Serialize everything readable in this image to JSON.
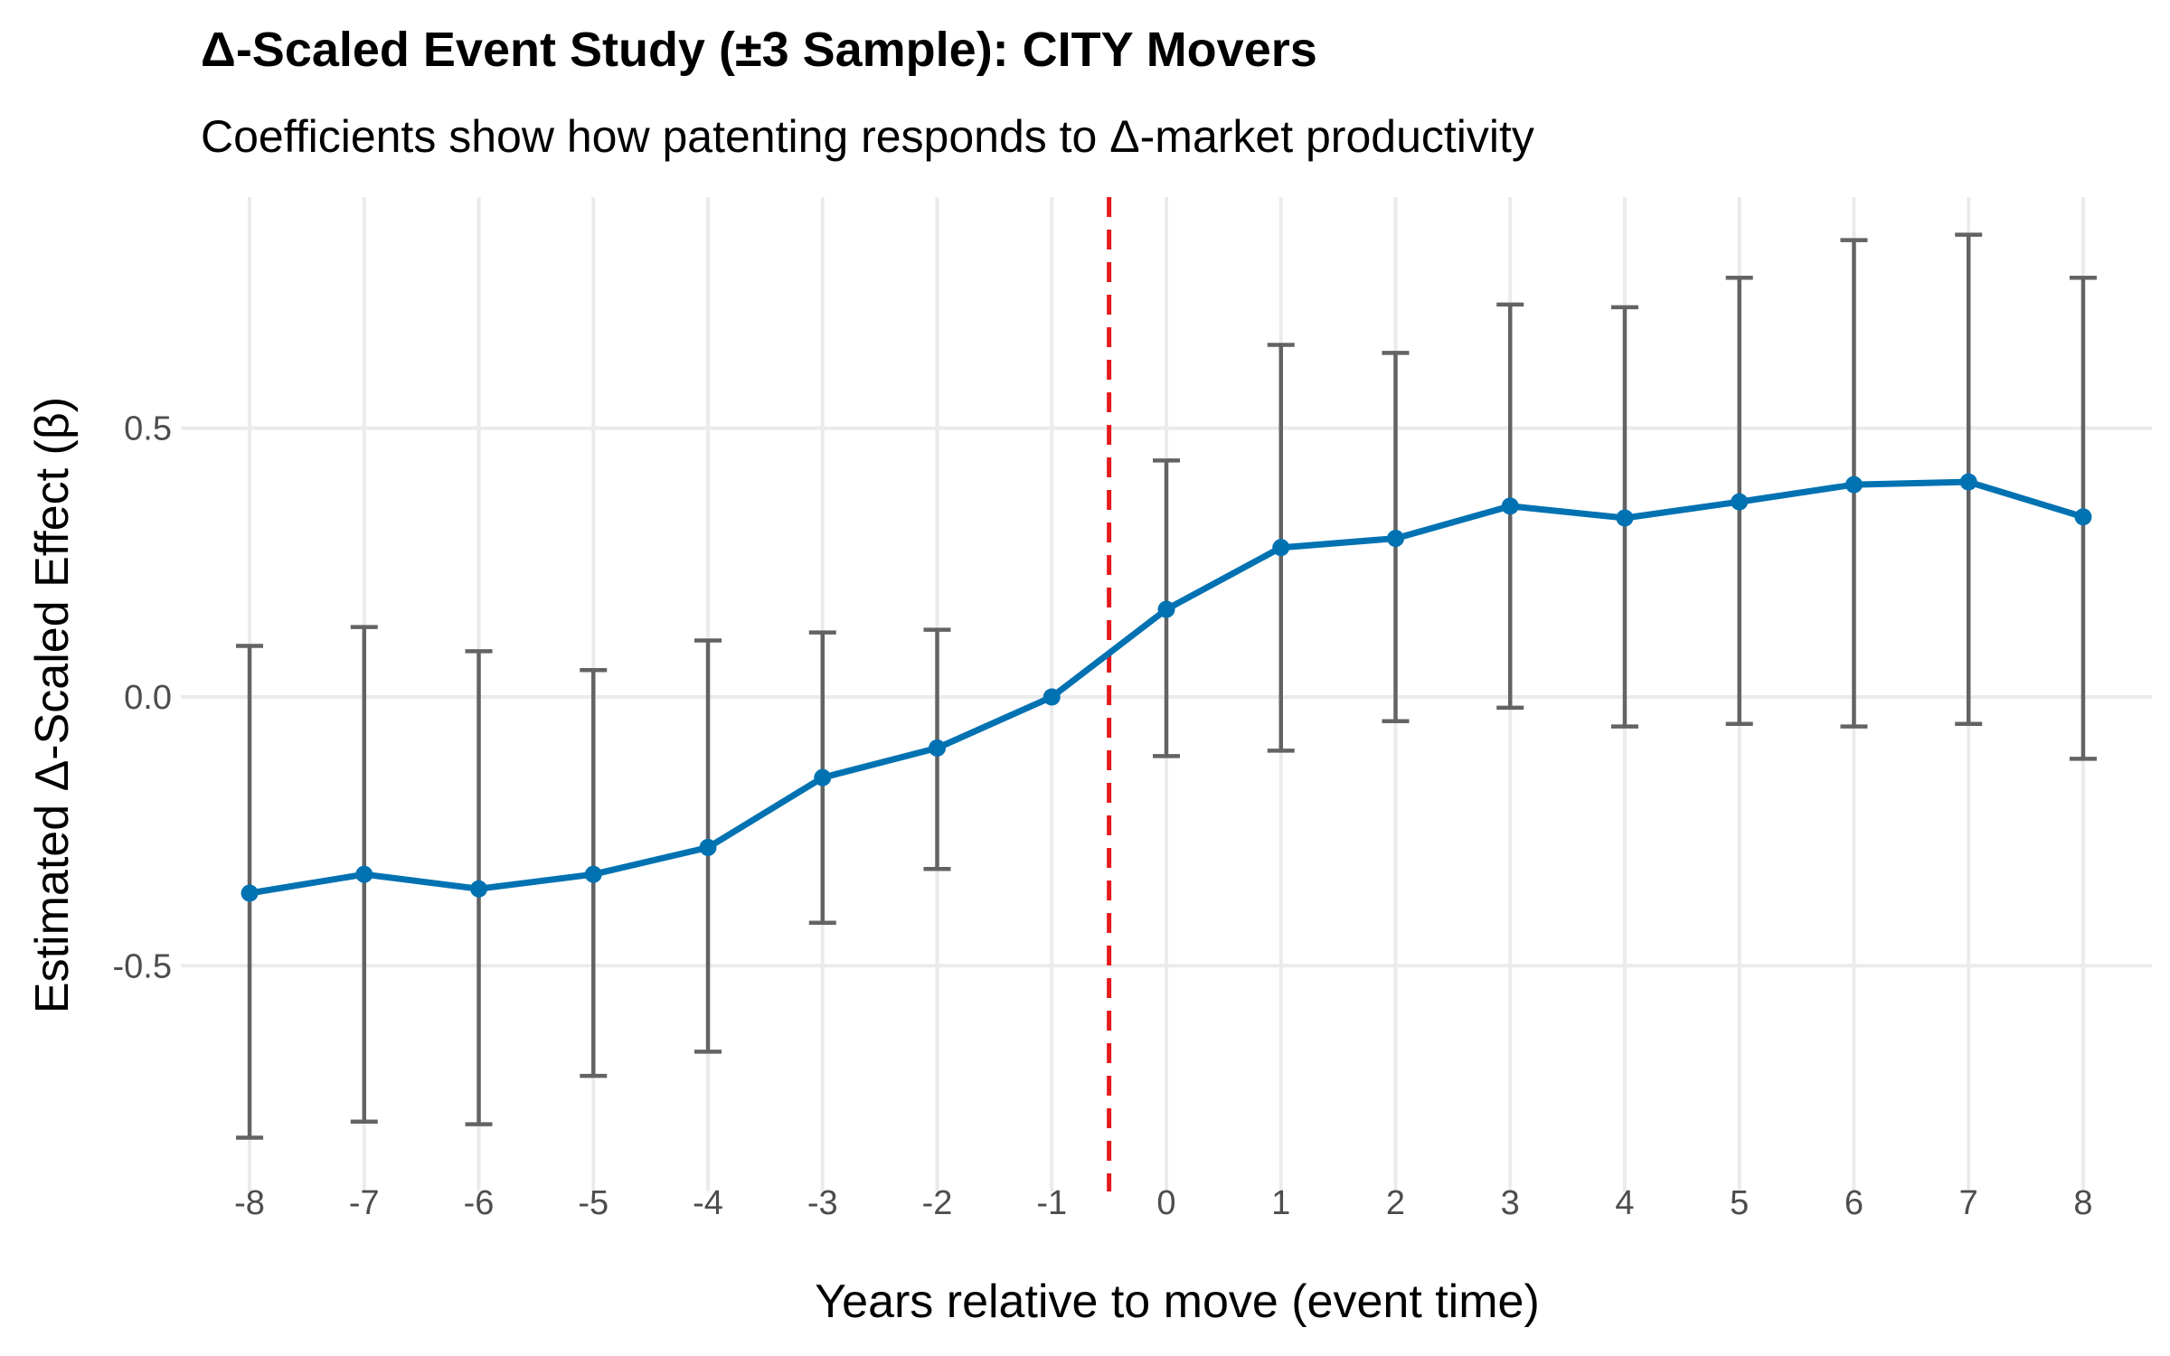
{
  "chart_data": {
    "type": "line",
    "title": "Δ-Scaled Event Study (±3 Sample): CITY Movers",
    "subtitle": "Coefficients show how patenting responds to Δ-market productivity",
    "xlabel": "Years relative to move (event time)",
    "ylabel": "Estimated Δ-Scaled Effect (β)",
    "x": [
      -8,
      -7,
      -6,
      -5,
      -4,
      -3,
      -2,
      -1,
      0,
      1,
      2,
      3,
      4,
      5,
      6,
      7,
      8
    ],
    "series": [
      {
        "values": [
          -0.365,
          -0.33,
          -0.357,
          -0.33,
          -0.28,
          -0.15,
          -0.095,
          0.0,
          0.163,
          0.278,
          0.295,
          0.355,
          0.333,
          0.363,
          0.395,
          0.4,
          0.335
        ],
        "ci_low": [
          -0.82,
          -0.79,
          -0.795,
          -0.705,
          -0.66,
          -0.42,
          -0.32,
          0.0,
          -0.11,
          -0.1,
          -0.045,
          -0.02,
          -0.055,
          -0.05,
          -0.055,
          -0.05,
          -0.115
        ],
        "ci_high": [
          0.095,
          0.13,
          0.085,
          0.05,
          0.105,
          0.12,
          0.125,
          0.0,
          0.44,
          0.655,
          0.64,
          0.73,
          0.725,
          0.78,
          0.85,
          0.86,
          0.78
        ]
      }
    ],
    "x_ticks": [
      "-8",
      "-7",
      "-6",
      "-5",
      "-4",
      "-3",
      "-2",
      "-1",
      "0",
      "1",
      "2",
      "3",
      "4",
      "5",
      "6",
      "7",
      "8"
    ],
    "y_ticks": [
      {
        "value": -0.5,
        "label": "-0.5"
      },
      {
        "value": 0.0,
        "label": "0.0"
      },
      {
        "value": 0.5,
        "label": "0.5"
      }
    ],
    "reference_line": {
      "x": -0.5,
      "style": "dashed",
      "color": "#e41a1c"
    },
    "xlim": [
      -8.6,
      8.6
    ],
    "ylim": [
      -0.92,
      0.93
    ],
    "grid": true,
    "colors": {
      "line": "#0072b2",
      "errorbar": "#636363",
      "grid": "#ebebeb",
      "reference": "#e41a1c"
    }
  }
}
